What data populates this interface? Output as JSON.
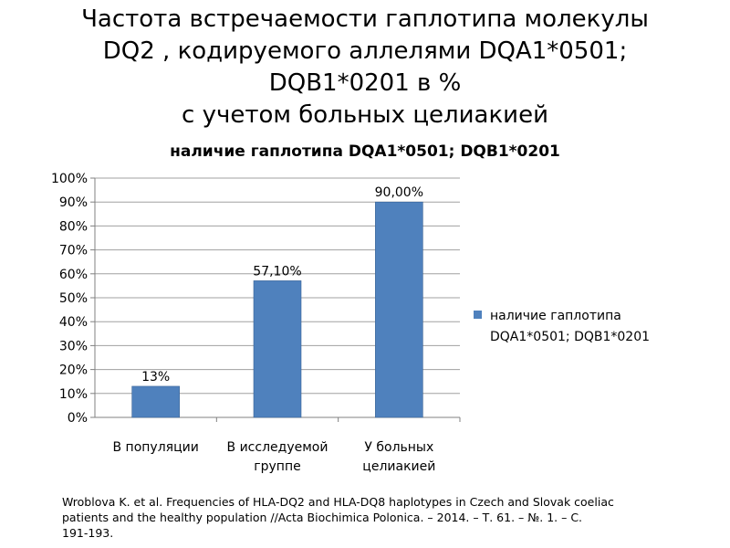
{
  "slide": {
    "title_lines": [
      "Частота встречаемости гаплотипа молекулы",
      "DQ2 , кодируемого аллелями DQA1*0501;",
      "DQB1*0201 в %",
      "с учетом больных целиакией"
    ],
    "citation_lines": [
      "Wroblova K. et al. Frequencies of HLA-DQ2 and HLA-DQ8 haplotypes in Czech and Slovak coeliac",
      "patients and the healthy population //Acta Biochimica Polonica. – 2014. – Т. 61. – №. 1. – С.",
      "191-193."
    ]
  },
  "colors": {
    "bar": "#4F81BD",
    "bar_edge": "#3A6496",
    "grid": "#A0A0A0",
    "axis": "#808080"
  },
  "chart_data": {
    "type": "bar",
    "title": "наличие гаплотипа DQA1*0501; DQB1*0201",
    "categories": [
      [
        "В популяции"
      ],
      [
        "В исследуемой",
        "группе"
      ],
      [
        "У больных",
        "целиакией"
      ]
    ],
    "series": [
      {
        "name": "наличие гаплотипа DQA1*0501; DQB1*0201",
        "legend_lines": [
          "наличие гаплотипа",
          "DQA1*0501; DQB1*0201"
        ],
        "values": [
          13,
          57.1,
          90
        ],
        "data_labels": [
          "13%",
          "57,10%",
          "90,00%"
        ]
      }
    ],
    "ylim": [
      0,
      100
    ],
    "ytick_step": 10,
    "ytick_labels": [
      "0%",
      "10%",
      "20%",
      "30%",
      "40%",
      "50%",
      "60%",
      "70%",
      "80%",
      "90%",
      "100%"
    ],
    "grid": true,
    "legend": "right"
  }
}
